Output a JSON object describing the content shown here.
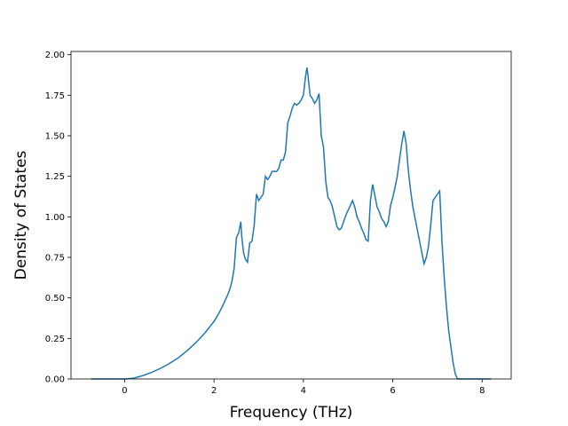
{
  "chart_data": {
    "type": "line",
    "title": "",
    "xlabel": "Frequency (THz)",
    "ylabel": "Density of States",
    "xlim": [
      -1.2,
      8.65
    ],
    "ylim": [
      0,
      2.02
    ],
    "x_ticks": [
      0,
      2,
      4,
      6,
      8
    ],
    "x_tick_labels": [
      "0",
      "2",
      "4",
      "6",
      "8"
    ],
    "y_ticks": [
      0,
      0.25,
      0.5,
      0.75,
      1.0,
      1.25,
      1.5,
      1.75,
      2.0
    ],
    "y_tick_labels": [
      "0.00",
      "0.25",
      "0.50",
      "0.75",
      "1.00",
      "1.25",
      "1.50",
      "1.75",
      "2.00"
    ],
    "grid": false,
    "legend": "none",
    "series": [
      {
        "color": "#1f77b4",
        "x": [
          -0.75,
          -0.3,
          0.0,
          0.2,
          0.4,
          0.6,
          0.8,
          1.0,
          1.2,
          1.4,
          1.6,
          1.8,
          2.0,
          2.1,
          2.2,
          2.3,
          2.35,
          2.4,
          2.45,
          2.5,
          2.55,
          2.6,
          2.62,
          2.66,
          2.7,
          2.75,
          2.8,
          2.85,
          2.9,
          2.95,
          3.0,
          3.05,
          3.1,
          3.15,
          3.2,
          3.25,
          3.3,
          3.35,
          3.4,
          3.45,
          3.5,
          3.55,
          3.6,
          3.65,
          3.7,
          3.75,
          3.8,
          3.85,
          3.9,
          3.95,
          4.0,
          4.05,
          4.08,
          4.1,
          4.15,
          4.2,
          4.25,
          4.3,
          4.35,
          4.4,
          4.45,
          4.5,
          4.55,
          4.6,
          4.65,
          4.7,
          4.75,
          4.8,
          4.85,
          4.9,
          4.95,
          5.0,
          5.05,
          5.1,
          5.15,
          5.2,
          5.25,
          5.3,
          5.35,
          5.4,
          5.45,
          5.5,
          5.55,
          5.6,
          5.65,
          5.7,
          5.75,
          5.8,
          5.85,
          5.9,
          5.95,
          6.0,
          6.05,
          6.1,
          6.15,
          6.2,
          6.25,
          6.3,
          6.35,
          6.4,
          6.45,
          6.5,
          6.55,
          6.6,
          6.65,
          6.7,
          6.75,
          6.8,
          6.85,
          6.9,
          6.95,
          7.0,
          7.05,
          7.1,
          7.15,
          7.2,
          7.25,
          7.3,
          7.35,
          7.4,
          7.45,
          7.5,
          7.6,
          7.8,
          8.2
        ],
        "y": [
          0.0,
          0.0,
          0.0,
          0.005,
          0.02,
          0.04,
          0.065,
          0.095,
          0.13,
          0.175,
          0.225,
          0.285,
          0.355,
          0.4,
          0.455,
          0.515,
          0.55,
          0.6,
          0.68,
          0.87,
          0.9,
          0.97,
          0.88,
          0.78,
          0.74,
          0.72,
          0.84,
          0.85,
          0.95,
          1.14,
          1.1,
          1.12,
          1.14,
          1.25,
          1.23,
          1.25,
          1.28,
          1.28,
          1.28,
          1.3,
          1.35,
          1.35,
          1.4,
          1.58,
          1.62,
          1.67,
          1.7,
          1.69,
          1.7,
          1.72,
          1.75,
          1.87,
          1.92,
          1.88,
          1.75,
          1.73,
          1.7,
          1.72,
          1.76,
          1.5,
          1.43,
          1.22,
          1.12,
          1.1,
          1.06,
          1.0,
          0.94,
          0.92,
          0.93,
          0.97,
          1.01,
          1.04,
          1.07,
          1.1,
          1.06,
          1.0,
          0.97,
          0.93,
          0.9,
          0.86,
          0.85,
          1.1,
          1.2,
          1.13,
          1.06,
          1.03,
          0.99,
          0.97,
          0.94,
          0.97,
          1.07,
          1.12,
          1.18,
          1.25,
          1.35,
          1.45,
          1.53,
          1.45,
          1.28,
          1.16,
          1.06,
          0.99,
          0.92,
          0.85,
          0.78,
          0.71,
          0.75,
          0.82,
          0.95,
          1.1,
          1.12,
          1.14,
          1.16,
          0.85,
          0.63,
          0.45,
          0.3,
          0.2,
          0.1,
          0.03,
          0.0,
          0.0,
          0.0,
          0.0,
          0.0
        ]
      }
    ]
  }
}
